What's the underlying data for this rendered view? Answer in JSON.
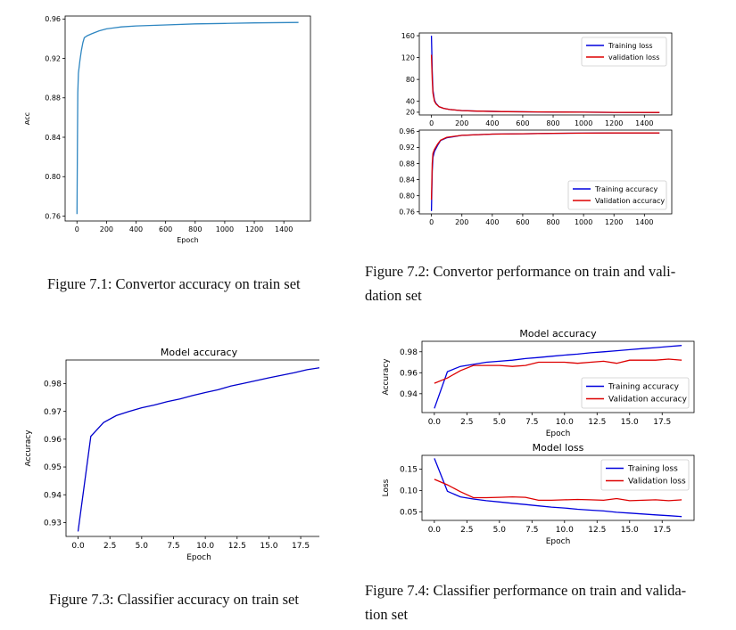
{
  "figures": [
    {
      "caption": "Figure 7.1: Convertor accuracy on train set",
      "chart_data": {
        "type": "line",
        "title": "",
        "xlabel": "Epoch",
        "ylabel": "Acc",
        "xlim": [
          -80,
          1580
        ],
        "ylim": [
          0.755,
          0.963
        ],
        "xticks": [
          0,
          200,
          400,
          600,
          800,
          1000,
          1200,
          1400
        ],
        "yticks": [
          0.76,
          0.8,
          0.84,
          0.88,
          0.92,
          0.96
        ],
        "legend": "none",
        "series": [
          {
            "color": "#2e86c1",
            "x": [
              0,
              3,
              6,
              10,
              20,
              30,
              40,
              50,
              70,
              100,
              150,
              200,
              300,
              400,
              600,
              800,
              1000,
              1200,
              1499
            ],
            "y": [
              0.762,
              0.835,
              0.885,
              0.905,
              0.918,
              0.928,
              0.936,
              0.941,
              0.943,
              0.945,
              0.948,
              0.95,
              0.952,
              0.953,
              0.954,
              0.955,
              0.9555,
              0.956,
              0.9565
            ]
          }
        ]
      }
    },
    {
      "caption_lines": [
        "Figure 7.2: Convertor performance on train and vali-",
        "dation set"
      ],
      "chart_data": [
        {
          "type": "line",
          "title": "",
          "xlabel": "",
          "ylabel": "",
          "xlim": [
            -80,
            1580
          ],
          "ylim": [
            15,
            165
          ],
          "xticks": [
            0,
            200,
            400,
            600,
            800,
            1000,
            1200,
            1400
          ],
          "yticks": [
            20,
            40,
            80,
            120,
            160
          ],
          "legend": "top-right",
          "series": [
            {
              "name": "Training loss",
              "color": "#0000dd",
              "x": [
                0,
                5,
                10,
                20,
                30,
                50,
                80,
                120,
                200,
                300,
                500,
                700,
                1000,
                1200,
                1499
              ],
              "y": [
                160,
                95,
                60,
                42,
                36,
                30,
                27,
                25,
                23,
                22,
                21,
                20.5,
                20,
                19.8,
                19.5
              ]
            },
            {
              "name": "validation loss",
              "color": "#dd0000",
              "x": [
                0,
                5,
                10,
                20,
                30,
                50,
                80,
                120,
                200,
                300,
                500,
                700,
                1000,
                1200,
                1499
              ],
              "y": [
                125,
                80,
                55,
                40,
                35,
                30,
                27,
                25,
                23,
                22,
                21,
                20.5,
                20,
                19.8,
                19.5
              ]
            }
          ]
        },
        {
          "type": "line",
          "title": "",
          "xlabel": "",
          "ylabel": "",
          "xlim": [
            -80,
            1580
          ],
          "ylim": [
            0.755,
            0.963
          ],
          "xticks": [
            0,
            200,
            400,
            600,
            800,
            1000,
            1200,
            1400
          ],
          "yticks": [
            0.76,
            0.8,
            0.84,
            0.88,
            0.92,
            0.96
          ],
          "legend": "bottom-right",
          "series": [
            {
              "name": "Training accuracy",
              "color": "#0000dd",
              "x": [
                0,
                5,
                10,
                20,
                40,
                60,
                100,
                200,
                400,
                600,
                800,
                1000,
                1200,
                1499
              ],
              "y": [
                0.762,
                0.86,
                0.895,
                0.91,
                0.925,
                0.937,
                0.944,
                0.95,
                0.953,
                0.954,
                0.955,
                0.9555,
                0.956,
                0.956
              ]
            },
            {
              "name": "Validation accuracy",
              "color": "#dd0000",
              "x": [
                0,
                5,
                10,
                20,
                40,
                60,
                100,
                200,
                400,
                600,
                800,
                1000,
                1200,
                1499
              ],
              "y": [
                0.79,
                0.88,
                0.905,
                0.915,
                0.928,
                0.938,
                0.945,
                0.95,
                0.953,
                0.954,
                0.955,
                0.9555,
                0.956,
                0.956
              ]
            }
          ]
        }
      ]
    },
    {
      "caption": "Figure 7.3: Classifier accuracy on train set",
      "chart_data": {
        "type": "line",
        "title": "Model accuracy",
        "xlabel": "Epoch",
        "ylabel": "Accuracy",
        "xlim": [
          -0.95,
          19.95
        ],
        "ylim": [
          0.925,
          0.9885
        ],
        "xticks": [
          0.0,
          2.5,
          5.0,
          7.5,
          10.0,
          12.5,
          15.0,
          17.5
        ],
        "yticks": [
          0.93,
          0.94,
          0.95,
          0.96,
          0.97,
          0.98
        ],
        "legend": "none",
        "series": [
          {
            "color": "#0000cc",
            "x": [
              0,
              1,
              2,
              3,
              4,
              5,
              6,
              7,
              8,
              9,
              10,
              11,
              12,
              13,
              14,
              15,
              16,
              17,
              18,
              19
            ],
            "y": [
              0.9268,
              0.961,
              0.966,
              0.9685,
              0.97,
              0.9713,
              0.9723,
              0.9735,
              0.9745,
              0.9757,
              0.9768,
              0.9778,
              0.9791,
              0.9801,
              0.9811,
              0.9821,
              0.983,
              0.9839,
              0.985,
              0.9857
            ]
          }
        ]
      }
    },
    {
      "caption_lines": [
        "Figure 7.4: Classifier performance on train and valida-",
        "tion set"
      ],
      "chart_data": [
        {
          "type": "line",
          "title": "Model accuracy",
          "xlabel": "Epoch",
          "ylabel": "Accuracy",
          "xlim": [
            -0.95,
            19.95
          ],
          "ylim": [
            0.922,
            0.99
          ],
          "xticks": [
            0.0,
            2.5,
            5.0,
            7.5,
            10.0,
            12.5,
            15.0,
            17.5
          ],
          "yticks": [
            0.94,
            0.96,
            0.98
          ],
          "legend": "bottom-right",
          "series": [
            {
              "name": "Training accuracy",
              "color": "#0000dd",
              "x": [
                0,
                1,
                2,
                3,
                4,
                5,
                6,
                7,
                8,
                9,
                10,
                11,
                12,
                13,
                14,
                15,
                16,
                17,
                18,
                19
              ],
              "y": [
                0.926,
                0.961,
                0.966,
                0.968,
                0.97,
                0.971,
                0.972,
                0.9735,
                0.9745,
                0.9757,
                0.9768,
                0.9778,
                0.979,
                0.98,
                0.981,
                0.982,
                0.983,
                0.984,
                0.985,
                0.986
              ]
            },
            {
              "name": "Validation accuracy",
              "color": "#dd0000",
              "x": [
                0,
                1,
                2,
                3,
                4,
                5,
                6,
                7,
                8,
                9,
                10,
                11,
                12,
                13,
                14,
                15,
                16,
                17,
                18,
                19
              ],
              "y": [
                0.95,
                0.955,
                0.962,
                0.967,
                0.967,
                0.967,
                0.966,
                0.967,
                0.97,
                0.97,
                0.97,
                0.969,
                0.97,
                0.971,
                0.969,
                0.972,
                0.972,
                0.972,
                0.973,
                0.972
              ]
            }
          ]
        },
        {
          "type": "line",
          "title": "Model loss",
          "xlabel": "Epoch",
          "ylabel": "Loss",
          "xlim": [
            -0.95,
            19.95
          ],
          "ylim": [
            0.03,
            0.182
          ],
          "xticks": [
            0.0,
            2.5,
            5.0,
            7.5,
            10.0,
            12.5,
            15.0,
            17.5
          ],
          "yticks": [
            0.05,
            0.1,
            0.15
          ],
          "legend": "top-right",
          "series": [
            {
              "name": "Training loss",
              "color": "#0000dd",
              "x": [
                0,
                1,
                2,
                3,
                4,
                5,
                6,
                7,
                8,
                9,
                10,
                11,
                12,
                13,
                14,
                15,
                16,
                17,
                18,
                19
              ],
              "y": [
                0.175,
                0.098,
                0.085,
                0.08,
                0.076,
                0.073,
                0.07,
                0.067,
                0.064,
                0.061,
                0.059,
                0.056,
                0.054,
                0.052,
                0.049,
                0.047,
                0.045,
                0.043,
                0.041,
                0.039
              ]
            },
            {
              "name": "Validation loss",
              "color": "#dd0000",
              "x": [
                0,
                1,
                2,
                3,
                4,
                5,
                6,
                7,
                8,
                9,
                10,
                11,
                12,
                13,
                14,
                15,
                16,
                17,
                18,
                19
              ],
              "y": [
                0.126,
                0.113,
                0.097,
                0.083,
                0.083,
                0.084,
                0.085,
                0.084,
                0.077,
                0.077,
                0.078,
                0.079,
                0.078,
                0.077,
                0.081,
                0.076,
                0.077,
                0.078,
                0.076,
                0.078
              ]
            }
          ]
        }
      ]
    }
  ]
}
